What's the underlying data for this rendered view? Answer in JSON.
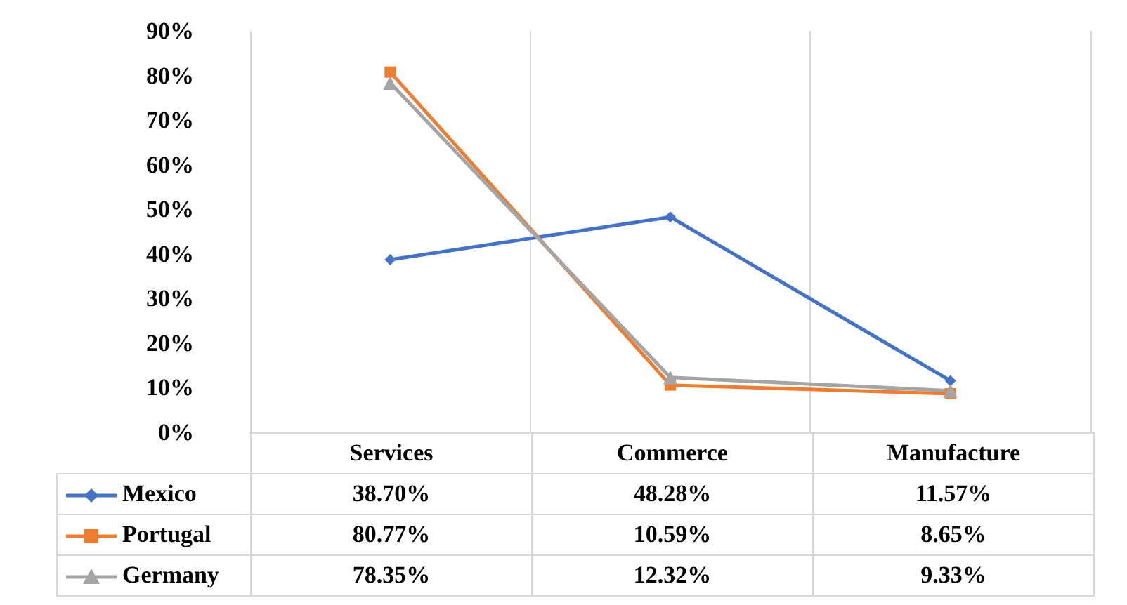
{
  "chart_data": {
    "type": "line",
    "categories": [
      "Services",
      "Commerce",
      "Manufacture"
    ],
    "series": [
      {
        "name": "Mexico",
        "color": "#4472c4",
        "marker": "diamond",
        "values": [
          38.7,
          48.28,
          11.57
        ],
        "value_labels": [
          "38.70%",
          "48.28%",
          "11.57%"
        ]
      },
      {
        "name": "Portugal",
        "color": "#ed7d31",
        "marker": "square",
        "values": [
          80.77,
          10.59,
          8.65
        ],
        "value_labels": [
          "80.77%",
          "10.59%",
          "8.65%"
        ]
      },
      {
        "name": "Germany",
        "color": "#a5a5a5",
        "marker": "triangle",
        "values": [
          78.35,
          12.32,
          9.33
        ],
        "value_labels": [
          "78.35%",
          "12.32%",
          "9.33%"
        ]
      }
    ],
    "ylim": [
      0,
      90
    ],
    "yticks": [
      {
        "value": 0,
        "label": "0%"
      },
      {
        "value": 10,
        "label": "10%"
      },
      {
        "value": 20,
        "label": "20%"
      },
      {
        "value": 30,
        "label": "30%"
      },
      {
        "value": 40,
        "label": "40%"
      },
      {
        "value": 50,
        "label": "50%"
      },
      {
        "value": 60,
        "label": "60%"
      },
      {
        "value": 70,
        "label": "70%"
      },
      {
        "value": 80,
        "label": "80%"
      },
      {
        "value": 90,
        "label": "90%"
      }
    ],
    "grid": "x",
    "legend": "bottom"
  }
}
